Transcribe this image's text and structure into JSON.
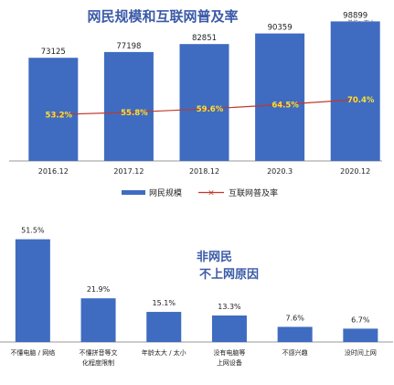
{
  "colors": {
    "bar": "#3f6cc0",
    "line": "#c0392b",
    "title": "#3b5aa8",
    "pct": "#f4e23a"
  },
  "chart_data": [
    {
      "type": "bar",
      "title": "网民规模和互联网普及率",
      "unit": "单位：万人",
      "categories": [
        "2016.12",
        "2017.12",
        "2018.12",
        "2020.3",
        "2020.12"
      ],
      "series": [
        {
          "name": "网民规模",
          "type": "bar",
          "values": [
            73125,
            77198,
            82851,
            90359,
            98899
          ]
        },
        {
          "name": "互联网普及率",
          "type": "line",
          "values": [
            53.2,
            55.8,
            59.6,
            64.5,
            70.4
          ],
          "labels": [
            "53.2%",
            "55.8%",
            "59.6%",
            "64.5%",
            "70.4%"
          ]
        }
      ],
      "bar_labels": [
        "73125",
        "77198",
        "82851",
        "90359",
        "98899"
      ],
      "ylim": [
        0,
        105000
      ],
      "ylim_rate": [
        0,
        170
      ],
      "legend": "bottom",
      "grid": false
    },
    {
      "type": "bar",
      "annotation": [
        "非网民",
        "不上网原因"
      ],
      "categories": [
        [
          "不懂电脑 / 网络"
        ],
        [
          "不懂拼音等文",
          "化程度限制"
        ],
        [
          "年龄太大 / 太小"
        ],
        [
          "没有电脑等",
          "上网设备"
        ],
        [
          "不感兴趣"
        ],
        [
          "没时间上网"
        ]
      ],
      "values": [
        51.5,
        21.9,
        15.1,
        13.3,
        7.6,
        6.7
      ],
      "labels": [
        "51.5%",
        "21.9%",
        "15.1%",
        "13.3%",
        "7.6%",
        "6.7%"
      ],
      "ylim": [
        0,
        55
      ],
      "grid": false
    }
  ]
}
